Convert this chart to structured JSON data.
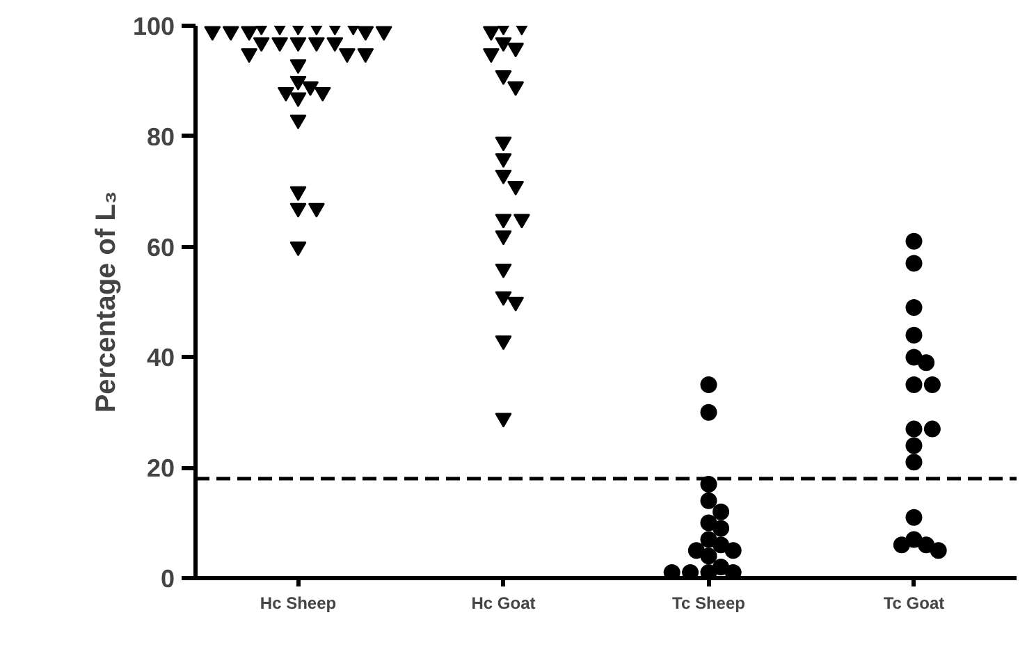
{
  "chart_data": {
    "type": "scatter",
    "ylabel": "Percentage of L₃",
    "categories": [
      "Hc Sheep",
      "Hc Goat",
      "Tc Sheep",
      "Tc Goat"
    ],
    "ylim": [
      0,
      100
    ],
    "yticks": [
      0,
      20,
      40,
      60,
      80,
      100
    ],
    "grid": false,
    "series": [
      {
        "color": "#000000",
        "marker": "triangle",
        "x": [
          "Hc Sheep",
          "Hc Sheep",
          "Hc Sheep",
          "Hc Sheep",
          "Hc Sheep",
          "Hc Sheep",
          "Hc Sheep",
          "Hc Sheep",
          "Hc Sheep",
          "Hc Sheep",
          "Hc Sheep",
          "Hc Sheep",
          "Hc Sheep",
          "Hc Sheep",
          "Hc Sheep",
          "Hc Sheep",
          "Hc Sheep",
          "Hc Sheep",
          "Hc Sheep",
          "Hc Sheep",
          "Hc Sheep",
          "Hc Sheep",
          "Hc Sheep",
          "Hc Sheep",
          "Hc Sheep",
          "Hc Sheep",
          "Hc Sheep"
        ],
        "values": [
          100,
          100,
          100,
          100,
          100,
          100,
          99,
          99,
          99,
          99,
          99,
          97,
          97,
          97,
          97,
          97,
          95,
          95,
          95,
          93,
          90,
          89,
          88,
          88,
          87,
          83,
          70
        ]
      },
      {
        "color": "#000000",
        "marker": "triangle",
        "x": [
          "Hc Sheep",
          "Hc Sheep",
          "Hc Sheep"
        ],
        "values": [
          67,
          67,
          60
        ]
      },
      {
        "color": "#000000",
        "marker": "triangle",
        "x": [
          "Hc Goat",
          "Hc Goat",
          "Hc Goat",
          "Hc Goat",
          "Hc Goat",
          "Hc Goat",
          "Hc Goat",
          "Hc Goat",
          "Hc Goat",
          "Hc Goat",
          "Hc Goat",
          "Hc Goat",
          "Hc Goat",
          "Hc Goat",
          "Hc Goat",
          "Hc Goat",
          "Hc Goat",
          "Hc Goat",
          "Hc Goat",
          "Hc Goat"
        ],
        "values": [
          100,
          100,
          99,
          97,
          96,
          95,
          91,
          89,
          79,
          76,
          73,
          71,
          65,
          65,
          62,
          56,
          51,
          50,
          43,
          29
        ]
      },
      {
        "color": "#000000",
        "marker": "circle",
        "x": [
          "Tc Sheep",
          "Tc Sheep",
          "Tc Sheep",
          "Tc Sheep",
          "Tc Sheep",
          "Tc Sheep",
          "Tc Sheep",
          "Tc Sheep",
          "Tc Sheep",
          "Tc Sheep",
          "Tc Sheep",
          "Tc Sheep",
          "Tc Sheep",
          "Tc Sheep",
          "Tc Sheep",
          "Tc Sheep",
          "Tc Sheep"
        ],
        "values": [
          35,
          30,
          17,
          14,
          12,
          10,
          9,
          7,
          6,
          5,
          5,
          4,
          2,
          1,
          1,
          1,
          1
        ]
      },
      {
        "color": "#000000",
        "marker": "circle",
        "x": [
          "Tc Goat",
          "Tc Goat",
          "Tc Goat",
          "Tc Goat",
          "Tc Goat",
          "Tc Goat",
          "Tc Goat",
          "Tc Goat",
          "Tc Goat",
          "Tc Goat",
          "Tc Goat",
          "Tc Goat",
          "Tc Goat",
          "Tc Goat",
          "Tc Goat",
          "Tc Goat",
          "Tc Goat"
        ],
        "values": [
          61,
          57,
          49,
          44,
          40,
          39,
          35,
          35,
          27,
          27,
          24,
          21,
          11,
          7,
          6,
          6,
          5
        ]
      }
    ],
    "ref_lines": [
      {
        "axis": "y",
        "value": 18,
        "color": "#000000",
        "line_style": "dashed"
      }
    ]
  }
}
